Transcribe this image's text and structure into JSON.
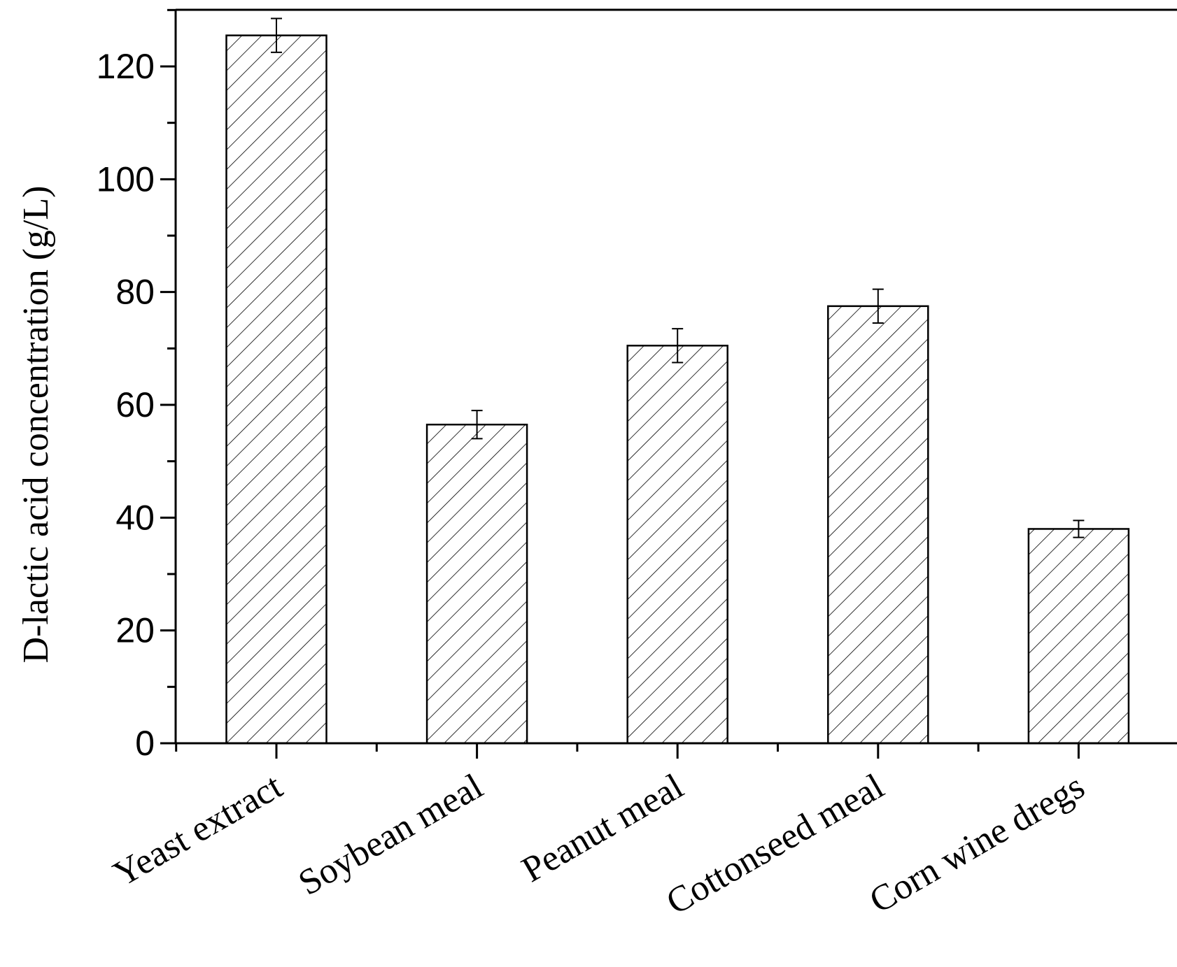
{
  "chart_data": {
    "type": "bar",
    "categories": [
      "Yeast extract",
      "Soybean meal",
      "Peanut meal",
      "Cottonseed meal",
      "Corn wine dregs"
    ],
    "values": [
      125.5,
      56.5,
      70.5,
      77.5,
      38.0
    ],
    "errors": [
      3.0,
      2.5,
      3.0,
      3.0,
      1.5
    ],
    "title": "",
    "xlabel": "",
    "ylabel": "D-lactic acid concentration (g/L)",
    "ylim": [
      0,
      130
    ],
    "yticks": [
      "0",
      "20",
      "40",
      "60",
      "80",
      "100",
      "120"
    ],
    "bar_fill": "hatched",
    "grid": false,
    "colors": {
      "bar_edge": "#000000",
      "hatch": "#000000",
      "axis": "#000000",
      "background": "#ffffff"
    }
  }
}
